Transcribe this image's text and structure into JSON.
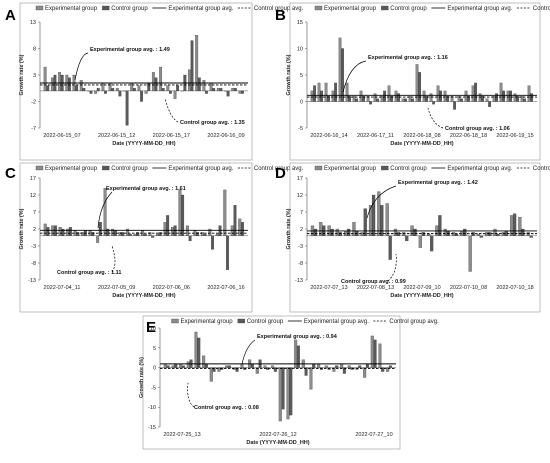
{
  "legend": {
    "experimental_bar": "Experimental group",
    "control_bar": "Control group",
    "experimental_avg": "Experimental group avg.",
    "control_avg": "Control group avg."
  },
  "colors": {
    "experimental": "#8c8c8c",
    "control": "#5a5a5a",
    "avg_line": "#000000"
  },
  "chart_data": [
    {
      "panel": "A",
      "type": "bar",
      "xlabel": "Date (YYYY-MM-DD_HH)",
      "ylabel": "Growth rate (%)",
      "ylim": [
        -7,
        13
      ],
      "yticks": [
        -7,
        -2,
        3,
        8,
        13
      ],
      "xticks": [
        "2022-06-15_07",
        "2022-06-15_12",
        "2022-06-15_17",
        "2022-06-16_09"
      ],
      "annotation_experimental": "Experimental group avg. : 1.49",
      "annotation_control": "Control group avg. : 1.35",
      "experimental_avg": 1.49,
      "control_avg": 1.35,
      "series": [
        {
          "name": "Experimental group",
          "values": [
            4.5,
            2.5,
            3.5,
            3.0,
            3.0,
            2.0,
            0,
            -0.5,
            1.5,
            1.5,
            0.5,
            0,
            1.5,
            1.0,
            -0.5,
            3.5,
            4.5,
            1.0,
            -1.5,
            0,
            4.0,
            10.5,
            2.0,
            1.5,
            0.5,
            0,
            0.5,
            -0.5
          ]
        },
        {
          "name": "Control group",
          "values": [
            1.0,
            3.0,
            3.0,
            2.5,
            1.0,
            0.5,
            -0.5,
            0.5,
            -0.5,
            0.5,
            -1.0,
            -6.5,
            0.5,
            -2.0,
            1.5,
            2.5,
            0.5,
            -0.5,
            1.0,
            3.0,
            9.5,
            2.5,
            -0.5,
            0.5,
            0.5,
            -1.0,
            0.5,
            -0.5
          ]
        }
      ]
    },
    {
      "panel": "B",
      "type": "bar",
      "xlabel": "Date (YYYY-MM-DD_HH)",
      "ylabel": "Growth rate (%)",
      "ylim": [
        -5,
        15
      ],
      "yticks": [
        -5,
        0,
        5,
        10,
        15
      ],
      "xticks": [
        "2022-06-16_14",
        "2022-06-17_11",
        "2022-06-18_08",
        "2022-06-18_18",
        "2022-06-19_15"
      ],
      "annotation_experimental": "Experimental group avg. : 1.16",
      "annotation_control": "Control group avg. : 1.06",
      "experimental_avg": 1.16,
      "control_avg": 1.06,
      "series": [
        {
          "name": "Experimental group",
          "values": [
            2.0,
            3.5,
            3.5,
            2.0,
            12.0,
            3.5,
            1.0,
            2.0,
            1.0,
            1.5,
            1.0,
            3.0,
            2.0,
            0.5,
            1.0,
            7.0,
            2.0,
            1.5,
            3.0,
            2.0,
            1.0,
            1.0,
            2.0,
            3.0,
            1.5,
            0.5,
            1.0,
            3.5,
            2.0,
            1.5,
            1.0,
            3.0
          ]
        },
        {
          "name": "Control group",
          "values": [
            3.0,
            2.0,
            1.0,
            3.5,
            10.0,
            1.0,
            0.5,
            1.0,
            -0.5,
            0.5,
            2.0,
            1.0,
            1.5,
            0.5,
            0.5,
            5.5,
            1.0,
            -0.5,
            2.0,
            1.0,
            -1.5,
            0.5,
            1.0,
            3.5,
            1.0,
            -1.0,
            1.5,
            2.0,
            2.0,
            1.0,
            0.5,
            1.5
          ]
        }
      ]
    },
    {
      "panel": "C",
      "type": "bar",
      "xlabel": "Date (YYYY-MM-DD_HH)",
      "ylabel": "Growth rate (%)",
      "ylim": [
        -13,
        17
      ],
      "yticks": [
        -13,
        -8,
        -3,
        2,
        7,
        12,
        17
      ],
      "xticks": [
        "2022-07-04_11",
        "2022-07-05_09",
        "2022-07-06_06",
        "2022-07-06_16"
      ],
      "annotation_experimental": "Experimental group avg. : 1.61",
      "annotation_control": "Control group avg. : 1.11",
      "experimental_avg": 1.61,
      "control_avg": 1.11,
      "series": [
        {
          "name": "Experimental group",
          "values": [
            3.5,
            3.0,
            2.5,
            2.0,
            1.5,
            1.0,
            1.5,
            -2.0,
            14.0,
            2.0,
            1.0,
            2.0,
            0.5,
            1.5,
            1.0,
            0.5,
            4.0,
            2.5,
            13.5,
            3.0,
            1.5,
            1.0,
            2.0,
            0.5,
            13.5,
            3.0,
            5.0
          ]
        },
        {
          "name": "Control group",
          "values": [
            2.5,
            3.0,
            2.0,
            2.5,
            1.0,
            1.5,
            1.0,
            4.0,
            2.0,
            1.5,
            1.0,
            0.5,
            1.0,
            0.5,
            -0.5,
            1.0,
            6.0,
            3.0,
            12.0,
            -1.5,
            1.0,
            0.5,
            -4.0,
            3.0,
            -10.0,
            9.0,
            4.0
          ]
        }
      ]
    },
    {
      "panel": "D",
      "type": "bar",
      "xlabel": "Date (YYYY-MM-DD_HH)",
      "ylabel": "Growth rate (%)",
      "ylim": [
        -13,
        17
      ],
      "yticks": [
        -13,
        -8,
        -3,
        2,
        7,
        12,
        17
      ],
      "xticks": [
        "2022-07-07_13",
        "2022-07-08_13",
        "2022-07-09_10",
        "2022-07-10_08",
        "2022-07-10_18"
      ],
      "annotation_experimental": "Experimental group avg. : 1.42",
      "annotation_control": "Control group avg. : 0.99",
      "experimental_avg": 1.42,
      "control_avg": 0.99,
      "series": [
        {
          "name": "Experimental group",
          "values": [
            3.0,
            4.0,
            3.0,
            2.0,
            1.5,
            4.0,
            1.0,
            9.0,
            13.0,
            9.5,
            2.0,
            1.0,
            3.0,
            -3.5,
            0.5,
            3.0,
            2.0,
            1.0,
            1.5,
            -10.5,
            0.5,
            1.0,
            2.0,
            1.0,
            6.0,
            5.5,
            1.0
          ]
        },
        {
          "name": "Control group",
          "values": [
            2.0,
            3.0,
            2.0,
            1.0,
            2.0,
            1.5,
            8.0,
            12.0,
            9.0,
            -7.0,
            1.0,
            -1.5,
            2.0,
            1.0,
            -4.5,
            6.0,
            1.5,
            0.5,
            2.0,
            1.0,
            -0.5,
            1.0,
            0.5,
            1.5,
            6.5,
            2.0,
            -0.5
          ]
        }
      ]
    },
    {
      "panel": "E",
      "type": "bar",
      "xlabel": "Date (YYYY-MM-DD_HH)",
      "ylabel": "Growth rate (%)",
      "ylim": [
        -15,
        10
      ],
      "yticks": [
        -15,
        -10,
        -5,
        0,
        5,
        10
      ],
      "xticks": [
        "2022-07-25_13",
        "2022-07-26_12",
        "2022-07-27_10"
      ],
      "annotation_experimental": "Experimental group avg. : 0.94",
      "annotation_control": "Control group avg. : 0.08",
      "experimental_avg": 0.94,
      "control_avg": 0.08,
      "series": [
        {
          "name": "Experimental group",
          "values": [
            1.0,
            0.5,
            1.0,
            1.5,
            9.0,
            3.0,
            -3.5,
            -1.0,
            0.5,
            -0.5,
            1.0,
            2.0,
            -1.5,
            0.5,
            0.5,
            -13.5,
            -13.0,
            7.0,
            2.0,
            -5.5,
            1.0,
            0.5,
            -1.0,
            1.0,
            0.5,
            -0.5,
            -2.5,
            8.0,
            6.0,
            -1.0
          ]
        },
        {
          "name": "Control group",
          "values": [
            0.5,
            1.0,
            0.5,
            2.0,
            7.5,
            1.0,
            -1.0,
            -0.5,
            0.5,
            -1.0,
            -0.5,
            1.0,
            2.0,
            -0.5,
            -1.0,
            -10.5,
            -12.0,
            5.5,
            -2.0,
            1.0,
            -0.5,
            -0.5,
            0.5,
            -1.5,
            -0.5,
            0.5,
            1.0,
            7.0,
            -1.0,
            0.5
          ]
        }
      ]
    }
  ]
}
